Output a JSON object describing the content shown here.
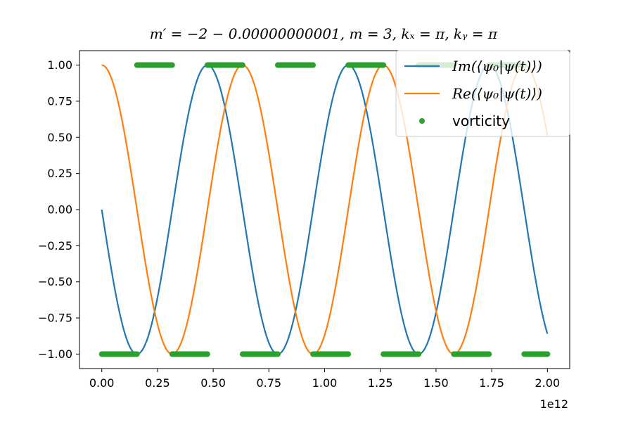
{
  "chart_data": {
    "type": "line",
    "title": "m′ = −2 − 0.00000000001,  m = 3,  kₓ = π,  kᵧ = π",
    "xlabel": "",
    "ylabel": "",
    "x_offset_label": "1e12",
    "xlim": [
      -0.1,
      2.1
    ],
    "ylim": [
      -1.1,
      1.1
    ],
    "x_ticks": [
      0.0,
      0.25,
      0.5,
      0.75,
      1.0,
      1.25,
      1.5,
      1.75,
      2.0
    ],
    "x_tick_labels": [
      "0.00",
      "0.25",
      "0.50",
      "0.75",
      "1.00",
      "1.25",
      "1.50",
      "1.75",
      "2.00"
    ],
    "y_ticks": [
      1.0,
      0.75,
      0.5,
      0.25,
      0.0,
      -0.25,
      -0.5,
      -0.75,
      -1.0
    ],
    "y_tick_labels": [
      "1.00",
      "0.75",
      "0.50",
      "0.25",
      "0.00",
      "−0.25",
      "−0.50",
      "−0.75",
      "−1.00"
    ],
    "grid": false,
    "legend_position": "top-right",
    "series": [
      {
        "name": "Im(⟨ψ₀|ψ(t)⟩)",
        "color": "#1f77b4",
        "kind": "line",
        "x": [
          0.0,
          0.079,
          0.158,
          0.237,
          0.316,
          0.395,
          0.474,
          0.553,
          0.632,
          0.711,
          0.79,
          0.869,
          0.948,
          1.027,
          1.106,
          1.185,
          1.264,
          1.343,
          1.422,
          1.501,
          1.58,
          1.659,
          1.738,
          1.817,
          1.896,
          2.0
        ],
        "y": [
          0.0,
          -0.71,
          -1.0,
          -0.71,
          0.0,
          0.71,
          1.0,
          0.71,
          0.0,
          -0.71,
          -1.0,
          -0.71,
          0.0,
          0.71,
          1.0,
          0.71,
          0.0,
          -0.71,
          -1.0,
          -0.71,
          0.0,
          0.71,
          1.0,
          0.71,
          0.0,
          -0.92
        ]
      },
      {
        "name": "Re(⟨ψ₀|ψ(t)⟩)",
        "color": "#ff7f0e",
        "kind": "line",
        "x": [
          0.0,
          0.079,
          0.158,
          0.237,
          0.316,
          0.395,
          0.474,
          0.553,
          0.632,
          0.711,
          0.79,
          0.869,
          0.948,
          1.027,
          1.106,
          1.185,
          1.264,
          1.343,
          1.422,
          1.501,
          1.58,
          1.659,
          1.738,
          1.817,
          1.896,
          2.0
        ],
        "y": [
          1.0,
          0.71,
          0.0,
          -0.71,
          -1.0,
          -0.71,
          0.0,
          0.71,
          1.0,
          0.71,
          0.0,
          -0.71,
          -1.0,
          -0.71,
          0.0,
          0.71,
          1.0,
          0.71,
          0.0,
          -0.71,
          -1.0,
          -0.71,
          0.0,
          0.71,
          1.0,
          0.4
        ]
      },
      {
        "name": "vorticity",
        "color": "#2ca02c",
        "kind": "segments",
        "segments": [
          {
            "x": [
              0.0,
              0.158
            ],
            "y": -1.0
          },
          {
            "x": [
              0.158,
              0.316
            ],
            "y": 1.0
          },
          {
            "x": [
              0.316,
              0.474
            ],
            "y": -1.0
          },
          {
            "x": [
              0.474,
              0.632
            ],
            "y": 1.0
          },
          {
            "x": [
              0.632,
              0.79
            ],
            "y": -1.0
          },
          {
            "x": [
              0.79,
              0.948
            ],
            "y": 1.0
          },
          {
            "x": [
              0.948,
              1.106
            ],
            "y": -1.0
          },
          {
            "x": [
              1.106,
              1.264
            ],
            "y": 1.0
          },
          {
            "x": [
              1.264,
              1.422
            ],
            "y": -1.0
          },
          {
            "x": [
              1.422,
              1.58
            ],
            "y": 1.0
          },
          {
            "x": [
              1.58,
              1.738
            ],
            "y": -1.0
          },
          {
            "x": [
              1.738,
              1.896
            ],
            "y": 1.0
          },
          {
            "x": [
              1.896,
              2.0
            ],
            "y": -1.0
          }
        ]
      }
    ]
  }
}
